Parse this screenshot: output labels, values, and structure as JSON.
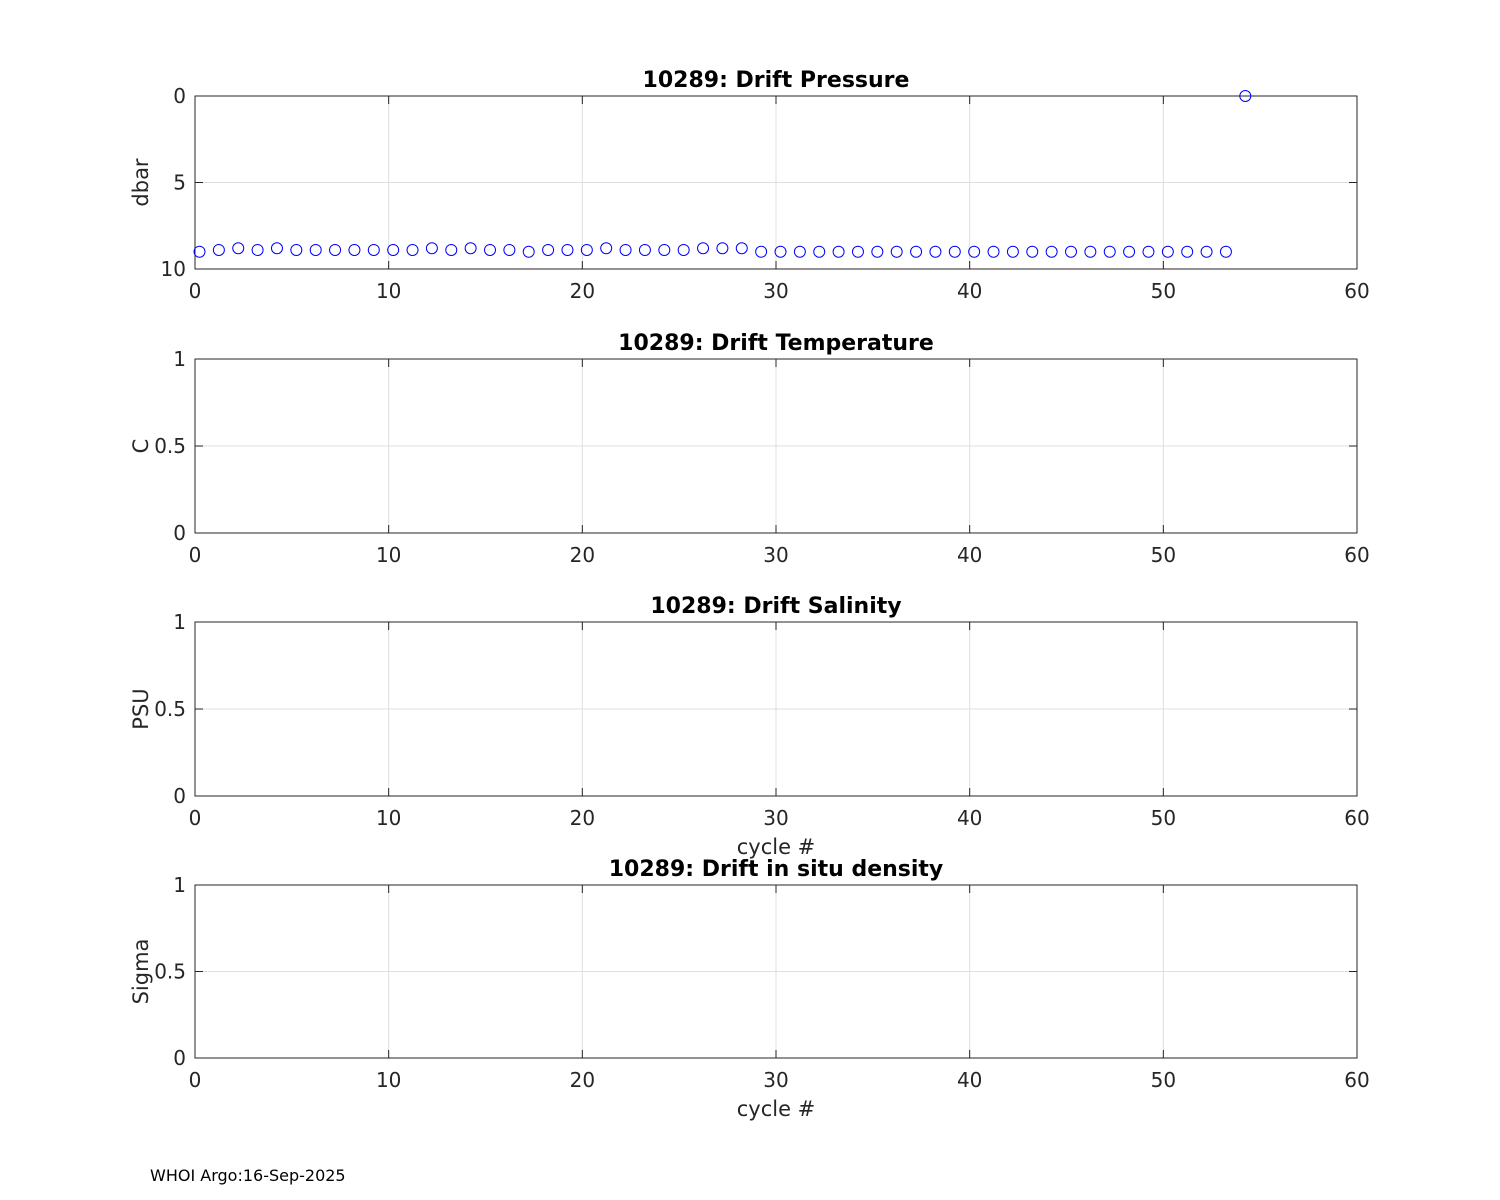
{
  "footer": "WHOI Argo:16-Sep-2025",
  "colors": {
    "marker": "#0000ff",
    "grid": "#dfdfdf",
    "axis": "#262626"
  },
  "chart_data": [
    {
      "type": "scatter",
      "title": "10289: Drift Pressure",
      "xlabel": "",
      "ylabel": "dbar",
      "xlim": [
        0,
        60
      ],
      "ylim": [
        0,
        10
      ],
      "y_reversed": true,
      "xticks": [
        0,
        10,
        20,
        30,
        40,
        50,
        60
      ],
      "yticks": [
        0,
        5,
        10
      ],
      "ytick_labels": [
        "0",
        "5",
        "10"
      ],
      "grid": true,
      "marker": "open-circle",
      "x": [
        0,
        1,
        2,
        3,
        4,
        5,
        6,
        7,
        8,
        9,
        10,
        11,
        12,
        13,
        14,
        15,
        16,
        17,
        18,
        19,
        20,
        21,
        22,
        23,
        24,
        25,
        26,
        27,
        28,
        29,
        30,
        31,
        32,
        33,
        34,
        35,
        36,
        37,
        38,
        39,
        40,
        41,
        42,
        43,
        44,
        45,
        46,
        47,
        48,
        49,
        50,
        51,
        52,
        53,
        54
      ],
      "y": [
        9.0,
        8.9,
        8.8,
        8.9,
        8.8,
        8.9,
        8.9,
        8.9,
        8.9,
        8.9,
        8.9,
        8.9,
        8.8,
        8.9,
        8.8,
        8.9,
        8.9,
        9.0,
        8.9,
        8.9,
        8.9,
        8.8,
        8.9,
        8.9,
        8.9,
        8.9,
        8.8,
        8.8,
        8.8,
        9.0,
        9.0,
        9.0,
        9.0,
        9.0,
        9.0,
        9.0,
        9.0,
        9.0,
        9.0,
        9.0,
        9.0,
        9.0,
        9.0,
        9.0,
        9.0,
        9.0,
        9.0,
        9.0,
        9.0,
        9.0,
        9.0,
        9.0,
        9.0,
        9.0,
        0.0
      ]
    },
    {
      "type": "scatter",
      "title": "10289: Drift Temperature",
      "xlabel": "",
      "ylabel": "C",
      "xlim": [
        0,
        60
      ],
      "ylim": [
        0,
        1
      ],
      "y_reversed": false,
      "xticks": [
        0,
        10,
        20,
        30,
        40,
        50,
        60
      ],
      "yticks": [
        0,
        0.5,
        1
      ],
      "ytick_labels": [
        "0",
        "0.5",
        "1"
      ],
      "grid": true,
      "x": [],
      "y": []
    },
    {
      "type": "scatter",
      "title": "10289: Drift Salinity",
      "xlabel": "cycle #",
      "ylabel": "PSU",
      "xlim": [
        0,
        60
      ],
      "ylim": [
        0,
        1
      ],
      "y_reversed": false,
      "xticks": [
        0,
        10,
        20,
        30,
        40,
        50,
        60
      ],
      "yticks": [
        0,
        0.5,
        1
      ],
      "ytick_labels": [
        "0",
        "0.5",
        "1"
      ],
      "grid": true,
      "x": [],
      "y": []
    },
    {
      "type": "scatter",
      "title": "10289: Drift in situ density",
      "xlabel": "cycle #",
      "ylabel": "Sigma",
      "xlim": [
        0,
        60
      ],
      "ylim": [
        0,
        1
      ],
      "y_reversed": false,
      "xticks": [
        0,
        10,
        20,
        30,
        40,
        50,
        60
      ],
      "yticks": [
        0,
        0.5,
        1
      ],
      "ytick_labels": [
        "0",
        "0.5",
        "1"
      ],
      "grid": true,
      "x": [],
      "y": []
    }
  ]
}
